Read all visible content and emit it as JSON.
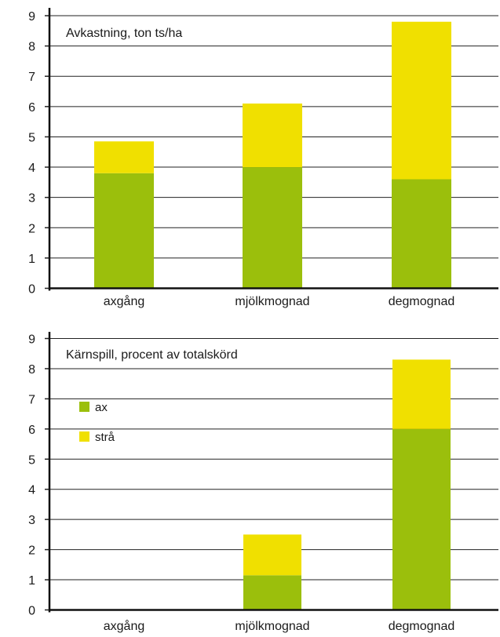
{
  "chart_data": [
    {
      "type": "bar",
      "stacked": true,
      "title": "Avkastning, ton ts/ha",
      "categories": [
        "axgång",
        "mjölkmognad",
        "degmognad"
      ],
      "series": [
        {
          "key": "ax",
          "values": [
            3.8,
            4.0,
            3.6
          ],
          "color": "#9bbf0c"
        },
        {
          "key": "stra",
          "values": [
            1.05,
            2.1,
            5.2
          ],
          "color": "#f0e000"
        }
      ],
      "ylim": [
        0,
        9
      ],
      "yticks": [
        0,
        1,
        2,
        3,
        4,
        5,
        6,
        7,
        8,
        9
      ],
      "grid": true,
      "legend": null
    },
    {
      "type": "bar",
      "stacked": true,
      "title": "Kärnspill, procent av totalskörd",
      "categories": [
        "axgång",
        "mjölkmognad",
        "degmognad"
      ],
      "series": [
        {
          "name": "ax",
          "values": [
            0,
            1.15,
            6.0
          ],
          "color": "#9bbf0c"
        },
        {
          "name": "strå",
          "values": [
            0,
            1.35,
            2.3
          ],
          "color": "#f0e000"
        }
      ],
      "ylim": [
        0,
        9
      ],
      "yticks": [
        0,
        1,
        2,
        3,
        4,
        5,
        6,
        7,
        8,
        9
      ],
      "grid": true,
      "legend": "top-left"
    }
  ]
}
